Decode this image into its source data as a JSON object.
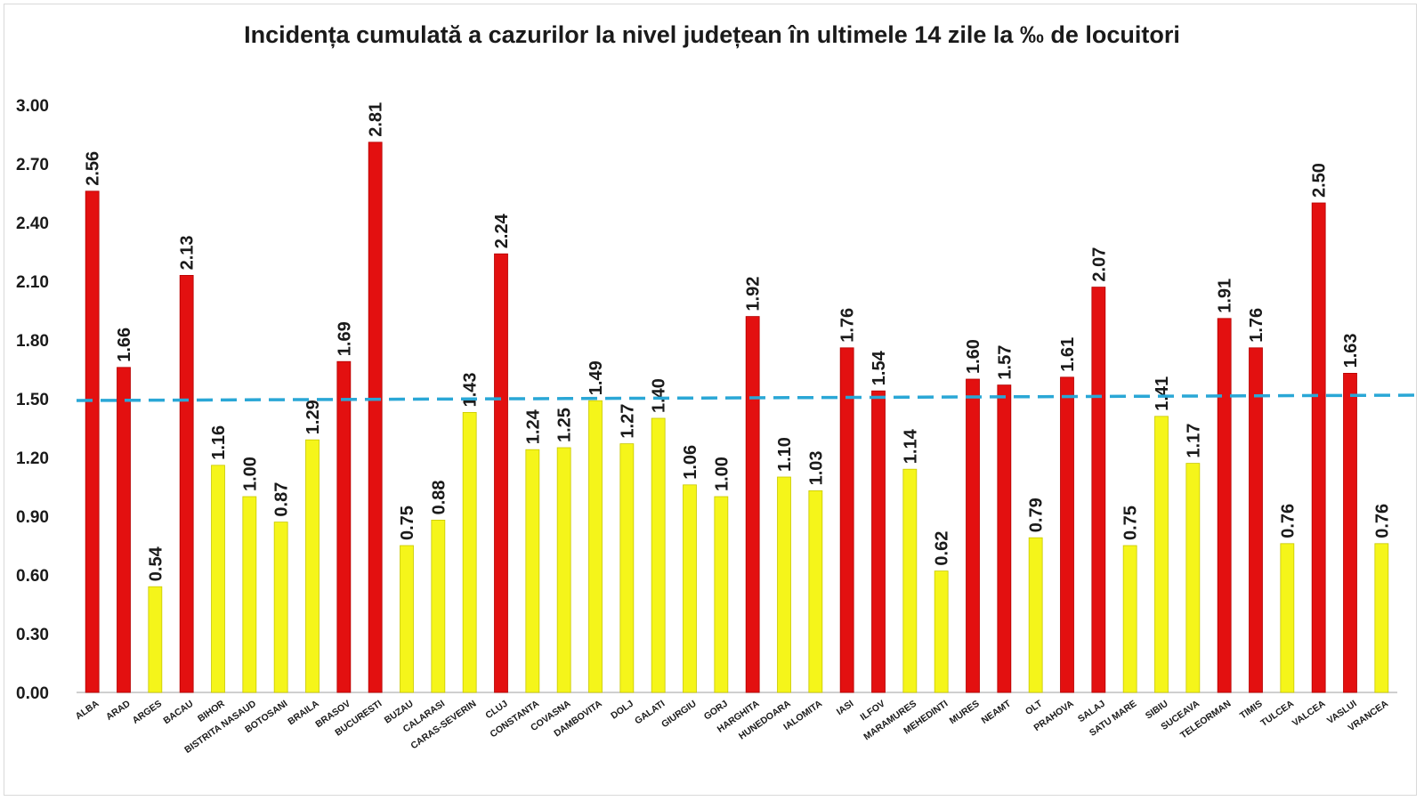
{
  "chart_data": {
    "type": "bar",
    "title": "Incidența cumulată a cazurilor la nivel județean în ultimele 14 zile la ‰ de locuitori",
    "xlabel": "",
    "ylabel": "",
    "ylim": [
      0,
      3.0
    ],
    "yticks": [
      "0.00",
      "0.30",
      "0.60",
      "0.90",
      "1.20",
      "1.50",
      "1.80",
      "2.10",
      "2.40",
      "2.70",
      "3.00"
    ],
    "threshold": 1.5,
    "colors": {
      "above_threshold": "#e31010",
      "below_threshold": "#f5f51a",
      "threshold_line": "#2aa7d6",
      "axis": "#bfbfbf"
    },
    "categories": [
      "ALBA",
      "ARAD",
      "ARGES",
      "BACAU",
      "BIHOR",
      "BISTRITA NASAUD",
      "BOTOSANI",
      "BRAILA",
      "BRASOV",
      "BUCURESTI",
      "BUZAU",
      "CALARASI",
      "CARAS-SEVERIN",
      "CLUJ",
      "CONSTANTA",
      "COVASNA",
      "DAMBOVITA",
      "DOLJ",
      "GALATI",
      "GIURGIU",
      "GORJ",
      "HARGHITA",
      "HUNEDOARA",
      "IALOMITA",
      "IASI",
      "ILFOV",
      "MARAMURES",
      "MEHEDINTI",
      "MURES",
      "NEAMT",
      "OLT",
      "PRAHOVA",
      "SALAJ",
      "SATU MARE",
      "SIBIU",
      "SUCEAVA",
      "TELEORMAN",
      "TIMIS",
      "TULCEA",
      "VALCEA",
      "VASLUI",
      "VRANCEA"
    ],
    "values": [
      2.56,
      1.66,
      0.54,
      2.13,
      1.16,
      1.0,
      0.87,
      1.29,
      1.69,
      2.81,
      0.75,
      0.88,
      1.43,
      2.24,
      1.24,
      1.25,
      1.49,
      1.27,
      1.4,
      1.06,
      1.0,
      1.92,
      1.1,
      1.03,
      1.76,
      1.54,
      1.14,
      0.62,
      1.6,
      1.57,
      0.79,
      1.61,
      2.07,
      0.75,
      1.41,
      1.17,
      1.91,
      1.76,
      0.76,
      2.5,
      1.63,
      0.76
    ],
    "value_labels": [
      "2.56",
      "1.66",
      "0.54",
      "2.13",
      "1.16",
      "1.00",
      "0.87",
      "1.29",
      "1.69",
      "2.81",
      "0.75",
      "0.88",
      "1.43",
      "2.24",
      "1.24",
      "1.25",
      "1.49",
      "1.27",
      "1.40",
      "1.06",
      "1.00",
      "1.92",
      "1.10",
      "1.03",
      "1.76",
      "1.54",
      "1.14",
      "0.62",
      "1.60",
      "1.57",
      "0.79",
      "1.61",
      "2.07",
      "0.75",
      "1.41",
      "1.17",
      "1.91",
      "1.76",
      "0.76",
      "2.50",
      "1.63",
      "0.76"
    ],
    "grid": false,
    "legend": "none"
  }
}
